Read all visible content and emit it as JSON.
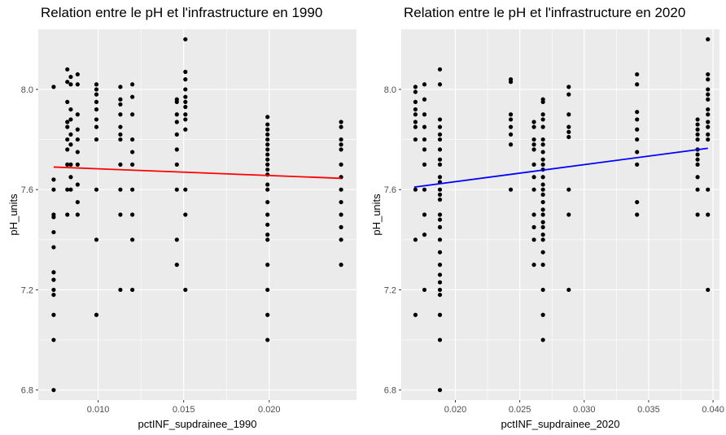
{
  "chart_data": [
    {
      "type": "scatter",
      "title": "Relation entre le pH et l'infrastructure en 1990",
      "xlabel": "pctINF_supdrainee_1990",
      "ylabel": "pH_units",
      "xlim": [
        0.0065,
        0.0251
      ],
      "ylim": [
        6.76,
        8.24
      ],
      "xticks": [
        0.01,
        0.015,
        0.02
      ],
      "xtick_labels": [
        "0.010",
        "0.015",
        "0.020"
      ],
      "yticks": [
        6.8,
        7.2,
        7.6,
        8.0
      ],
      "ytick_labels": [
        "6.8",
        "7.2",
        "7.6",
        "8.0"
      ],
      "grid": true,
      "background": "#ebebeb",
      "point_color": "#000000",
      "trend_line": {
        "color": "#ff0000",
        "x": [
          0.0074,
          0.0242
        ],
        "y": [
          7.69,
          7.645
        ]
      },
      "points": [
        [
          0.0074,
          8.01
        ],
        [
          0.0074,
          7.64
        ],
        [
          0.0074,
          7.6
        ],
        [
          0.0074,
          7.5
        ],
        [
          0.0074,
          7.49
        ],
        [
          0.0074,
          7.43
        ],
        [
          0.0074,
          7.37
        ],
        [
          0.0074,
          7.27
        ],
        [
          0.0074,
          7.24
        ],
        [
          0.0074,
          7.2
        ],
        [
          0.0074,
          7.18
        ],
        [
          0.0074,
          7.1
        ],
        [
          0.0074,
          7.0
        ],
        [
          0.0074,
          6.8
        ],
        [
          0.0082,
          8.08
        ],
        [
          0.0082,
          8.03
        ],
        [
          0.0082,
          7.95
        ],
        [
          0.0082,
          7.87
        ],
        [
          0.0082,
          7.85
        ],
        [
          0.0082,
          7.8
        ],
        [
          0.0082,
          7.76
        ],
        [
          0.0082,
          7.7
        ],
        [
          0.0082,
          7.6
        ],
        [
          0.0082,
          7.5
        ],
        [
          0.0084,
          8.05
        ],
        [
          0.0084,
          8.02
        ],
        [
          0.0084,
          7.92
        ],
        [
          0.0084,
          7.88
        ],
        [
          0.0084,
          7.82
        ],
        [
          0.0084,
          7.78
        ],
        [
          0.0084,
          7.7
        ],
        [
          0.0084,
          7.65
        ],
        [
          0.0084,
          7.6
        ],
        [
          0.0088,
          8.06
        ],
        [
          0.0088,
          8.02
        ],
        [
          0.0088,
          7.9
        ],
        [
          0.0088,
          7.84
        ],
        [
          0.0088,
          7.8
        ],
        [
          0.0088,
          7.75
        ],
        [
          0.0088,
          7.7
        ],
        [
          0.0088,
          7.62
        ],
        [
          0.0088,
          7.55
        ],
        [
          0.0088,
          7.5
        ],
        [
          0.0099,
          8.02
        ],
        [
          0.0099,
          8.0
        ],
        [
          0.0099,
          7.98
        ],
        [
          0.0099,
          7.95
        ],
        [
          0.0099,
          7.92
        ],
        [
          0.0099,
          7.88
        ],
        [
          0.0099,
          7.85
        ],
        [
          0.0099,
          7.8
        ],
        [
          0.0099,
          7.6
        ],
        [
          0.0099,
          7.4
        ],
        [
          0.0099,
          7.1
        ],
        [
          0.0113,
          8.01
        ],
        [
          0.0113,
          7.96
        ],
        [
          0.0113,
          7.94
        ],
        [
          0.0113,
          7.9
        ],
        [
          0.0113,
          7.85
        ],
        [
          0.0113,
          7.82
        ],
        [
          0.0113,
          7.8
        ],
        [
          0.0113,
          7.7
        ],
        [
          0.0113,
          7.6
        ],
        [
          0.0113,
          7.5
        ],
        [
          0.0113,
          7.2
        ],
        [
          0.012,
          8.02
        ],
        [
          0.012,
          7.97
        ],
        [
          0.012,
          7.9
        ],
        [
          0.012,
          7.8
        ],
        [
          0.012,
          7.75
        ],
        [
          0.012,
          7.7
        ],
        [
          0.012,
          7.6
        ],
        [
          0.012,
          7.5
        ],
        [
          0.012,
          7.4
        ],
        [
          0.012,
          7.2
        ],
        [
          0.0146,
          7.96
        ],
        [
          0.0146,
          7.95
        ],
        [
          0.0146,
          7.9
        ],
        [
          0.0146,
          7.87
        ],
        [
          0.0146,
          7.82
        ],
        [
          0.0146,
          7.76
        ],
        [
          0.0146,
          7.7
        ],
        [
          0.0146,
          7.6
        ],
        [
          0.0146,
          7.4
        ],
        [
          0.0146,
          7.3
        ],
        [
          0.0151,
          8.2
        ],
        [
          0.0151,
          8.07
        ],
        [
          0.0151,
          8.04
        ],
        [
          0.0151,
          8.0
        ],
        [
          0.0151,
          7.97
        ],
        [
          0.0151,
          7.95
        ],
        [
          0.0151,
          7.93
        ],
        [
          0.0151,
          7.9
        ],
        [
          0.0151,
          7.88
        ],
        [
          0.0151,
          7.84
        ],
        [
          0.0151,
          7.6
        ],
        [
          0.0151,
          7.5
        ],
        [
          0.0151,
          7.2
        ],
        [
          0.0199,
          7.89
        ],
        [
          0.0199,
          7.86
        ],
        [
          0.0199,
          7.84
        ],
        [
          0.0199,
          7.82
        ],
        [
          0.0199,
          7.8
        ],
        [
          0.0199,
          7.78
        ],
        [
          0.0199,
          7.76
        ],
        [
          0.0199,
          7.74
        ],
        [
          0.0199,
          7.72
        ],
        [
          0.0199,
          7.7
        ],
        [
          0.0199,
          7.68
        ],
        [
          0.0199,
          7.66
        ],
        [
          0.0199,
          7.62
        ],
        [
          0.0199,
          7.6
        ],
        [
          0.0199,
          7.55
        ],
        [
          0.0199,
          7.5
        ],
        [
          0.0199,
          7.46
        ],
        [
          0.0199,
          7.42
        ],
        [
          0.0199,
          7.4
        ],
        [
          0.0199,
          7.3
        ],
        [
          0.0199,
          7.2
        ],
        [
          0.0199,
          7.1
        ],
        [
          0.0199,
          7.0
        ],
        [
          0.0242,
          7.87
        ],
        [
          0.0242,
          7.85
        ],
        [
          0.0242,
          7.8
        ],
        [
          0.0242,
          7.78
        ],
        [
          0.0242,
          7.76
        ],
        [
          0.0242,
          7.7
        ],
        [
          0.0242,
          7.65
        ],
        [
          0.0242,
          7.6
        ],
        [
          0.0242,
          7.55
        ],
        [
          0.0242,
          7.5
        ],
        [
          0.0242,
          7.45
        ],
        [
          0.0242,
          7.4
        ],
        [
          0.0242,
          7.3
        ]
      ]
    },
    {
      "type": "scatter",
      "title": "Relation entre le pH et l'infrastructure en 2020",
      "xlabel": "pctINF_supdrainee_2020",
      "ylabel": "pH_units",
      "xlim": [
        0.0158,
        0.0405
      ],
      "ylim": [
        6.76,
        8.24
      ],
      "xticks": [
        0.02,
        0.025,
        0.03,
        0.035,
        0.04
      ],
      "xtick_labels": [
        "0.020",
        "0.025",
        "0.030",
        "0.035",
        "0.040"
      ],
      "yticks": [
        6.8,
        7.2,
        7.6,
        8.0
      ],
      "ytick_labels": [
        "6.8",
        "7.2",
        "7.6",
        "8.0"
      ],
      "grid": true,
      "background": "#ebebeb",
      "point_color": "#000000",
      "trend_line": {
        "color": "#0000ff",
        "x": [
          0.0168,
          0.0396
        ],
        "y": [
          7.61,
          7.765
        ]
      },
      "points": [
        [
          0.0169,
          8.01
        ],
        [
          0.0169,
          7.99
        ],
        [
          0.0169,
          7.95
        ],
        [
          0.0169,
          7.92
        ],
        [
          0.0169,
          7.9
        ],
        [
          0.0169,
          7.87
        ],
        [
          0.0169,
          7.85
        ],
        [
          0.0169,
          7.8
        ],
        [
          0.0169,
          7.6
        ],
        [
          0.0169,
          7.4
        ],
        [
          0.0169,
          7.1
        ],
        [
          0.0176,
          8.02
        ],
        [
          0.0176,
          7.96
        ],
        [
          0.0176,
          7.9
        ],
        [
          0.0176,
          7.85
        ],
        [
          0.0176,
          7.8
        ],
        [
          0.0176,
          7.76
        ],
        [
          0.0176,
          7.7
        ],
        [
          0.0176,
          7.6
        ],
        [
          0.0176,
          7.5
        ],
        [
          0.0176,
          7.42
        ],
        [
          0.0176,
          7.2
        ],
        [
          0.0188,
          8.08
        ],
        [
          0.0188,
          8.02
        ],
        [
          0.0188,
          7.88
        ],
        [
          0.0188,
          7.85
        ],
        [
          0.0188,
          7.82
        ],
        [
          0.0188,
          7.8
        ],
        [
          0.0188,
          7.76
        ],
        [
          0.0188,
          7.72
        ],
        [
          0.0188,
          7.7
        ],
        [
          0.0188,
          7.65
        ],
        [
          0.0188,
          7.63
        ],
        [
          0.0188,
          7.6
        ],
        [
          0.0188,
          7.58
        ],
        [
          0.0188,
          7.56
        ],
        [
          0.0188,
          7.5
        ],
        [
          0.0188,
          7.48
        ],
        [
          0.0188,
          7.45
        ],
        [
          0.0188,
          7.4
        ],
        [
          0.0188,
          7.35
        ],
        [
          0.0188,
          7.3
        ],
        [
          0.0188,
          7.26
        ],
        [
          0.0188,
          7.23
        ],
        [
          0.0188,
          7.2
        ],
        [
          0.0188,
          7.18
        ],
        [
          0.0188,
          7.1
        ],
        [
          0.0188,
          7.0
        ],
        [
          0.0188,
          6.8
        ],
        [
          0.0243,
          8.04
        ],
        [
          0.0243,
          8.03
        ],
        [
          0.0243,
          7.9
        ],
        [
          0.0243,
          7.88
        ],
        [
          0.0243,
          7.85
        ],
        [
          0.0243,
          7.82
        ],
        [
          0.0243,
          7.78
        ],
        [
          0.0243,
          7.6
        ],
        [
          0.0261,
          7.87
        ],
        [
          0.0261,
          7.85
        ],
        [
          0.0261,
          7.8
        ],
        [
          0.0261,
          7.78
        ],
        [
          0.0261,
          7.76
        ],
        [
          0.0261,
          7.7
        ],
        [
          0.0261,
          7.65
        ],
        [
          0.0261,
          7.6
        ],
        [
          0.0261,
          7.5
        ],
        [
          0.0261,
          7.45
        ],
        [
          0.0261,
          7.4
        ],
        [
          0.0261,
          7.3
        ],
        [
          0.0268,
          7.96
        ],
        [
          0.0268,
          7.95
        ],
        [
          0.0268,
          7.9
        ],
        [
          0.0268,
          7.88
        ],
        [
          0.0268,
          7.85
        ],
        [
          0.0268,
          7.8
        ],
        [
          0.0268,
          7.78
        ],
        [
          0.0268,
          7.75
        ],
        [
          0.0268,
          7.72
        ],
        [
          0.0268,
          7.7
        ],
        [
          0.0268,
          7.68
        ],
        [
          0.0268,
          7.65
        ],
        [
          0.0268,
          7.62
        ],
        [
          0.0268,
          7.6
        ],
        [
          0.0268,
          7.58
        ],
        [
          0.0268,
          7.55
        ],
        [
          0.0268,
          7.52
        ],
        [
          0.0268,
          7.5
        ],
        [
          0.0268,
          7.47
        ],
        [
          0.0268,
          7.45
        ],
        [
          0.0268,
          7.42
        ],
        [
          0.0268,
          7.4
        ],
        [
          0.0268,
          7.35
        ],
        [
          0.0268,
          7.3
        ],
        [
          0.0268,
          7.2
        ],
        [
          0.0268,
          7.1
        ],
        [
          0.0268,
          7.0
        ],
        [
          0.0288,
          8.01
        ],
        [
          0.0288,
          7.98
        ],
        [
          0.0288,
          7.9
        ],
        [
          0.0288,
          7.85
        ],
        [
          0.0288,
          7.83
        ],
        [
          0.0288,
          7.81
        ],
        [
          0.0288,
          7.6
        ],
        [
          0.0288,
          7.5
        ],
        [
          0.0288,
          7.2
        ],
        [
          0.0341,
          8.06
        ],
        [
          0.0341,
          8.02
        ],
        [
          0.0341,
          7.91
        ],
        [
          0.0341,
          7.88
        ],
        [
          0.0341,
          7.84
        ],
        [
          0.0341,
          7.8
        ],
        [
          0.0341,
          7.75
        ],
        [
          0.0341,
          7.7
        ],
        [
          0.0341,
          7.55
        ],
        [
          0.0341,
          7.5
        ],
        [
          0.0388,
          7.88
        ],
        [
          0.0388,
          7.86
        ],
        [
          0.0388,
          7.84
        ],
        [
          0.0388,
          7.82
        ],
        [
          0.0388,
          7.8
        ],
        [
          0.0388,
          7.76
        ],
        [
          0.0388,
          7.74
        ],
        [
          0.0388,
          7.72
        ],
        [
          0.0388,
          7.7
        ],
        [
          0.0388,
          7.65
        ],
        [
          0.0388,
          7.6
        ],
        [
          0.0388,
          7.5
        ],
        [
          0.0396,
          8.2
        ],
        [
          0.0396,
          8.06
        ],
        [
          0.0396,
          8.04
        ],
        [
          0.0396,
          8.0
        ],
        [
          0.0396,
          7.98
        ],
        [
          0.0396,
          7.96
        ],
        [
          0.0396,
          7.92
        ],
        [
          0.0396,
          7.9
        ],
        [
          0.0396,
          7.87
        ],
        [
          0.0396,
          7.85
        ],
        [
          0.0396,
          7.82
        ],
        [
          0.0396,
          7.8
        ],
        [
          0.0396,
          7.6
        ],
        [
          0.0396,
          7.5
        ],
        [
          0.0396,
          7.2
        ]
      ]
    }
  ]
}
